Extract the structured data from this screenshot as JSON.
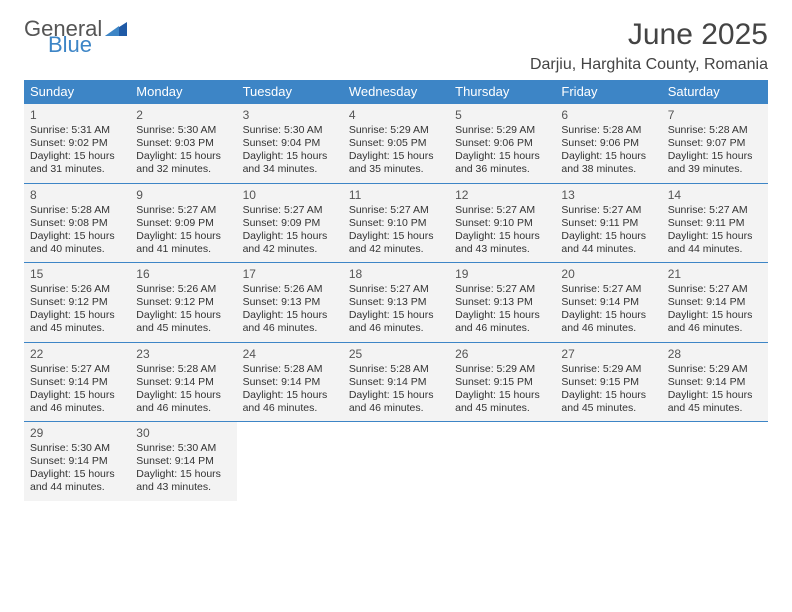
{
  "brand": {
    "general": "General",
    "blue": "Blue"
  },
  "title": "June 2025",
  "location": "Darjiu, Harghita County, Romania",
  "colors": {
    "header_bg": "#3d85c6",
    "header_text": "#ffffff",
    "cell_bg": "#f3f3f3",
    "page_bg": "#ffffff",
    "border": "#3d85c6",
    "logo_gray": "#555555",
    "logo_blue": "#3d85c6"
  },
  "typography": {
    "title_fontsize": 30,
    "location_fontsize": 16,
    "dayhead_fontsize": 13,
    "daynum_fontsize": 12,
    "body_fontsize": 10.5,
    "font_family": "Arial"
  },
  "day_headers": [
    "Sunday",
    "Monday",
    "Tuesday",
    "Wednesday",
    "Thursday",
    "Friday",
    "Saturday"
  ],
  "weeks": [
    [
      {
        "n": "1",
        "sr": "5:31 AM",
        "ss": "9:02 PM",
        "dl": "15 hours and 31 minutes."
      },
      {
        "n": "2",
        "sr": "5:30 AM",
        "ss": "9:03 PM",
        "dl": "15 hours and 32 minutes."
      },
      {
        "n": "3",
        "sr": "5:30 AM",
        "ss": "9:04 PM",
        "dl": "15 hours and 34 minutes."
      },
      {
        "n": "4",
        "sr": "5:29 AM",
        "ss": "9:05 PM",
        "dl": "15 hours and 35 minutes."
      },
      {
        "n": "5",
        "sr": "5:29 AM",
        "ss": "9:06 PM",
        "dl": "15 hours and 36 minutes."
      },
      {
        "n": "6",
        "sr": "5:28 AM",
        "ss": "9:06 PM",
        "dl": "15 hours and 38 minutes."
      },
      {
        "n": "7",
        "sr": "5:28 AM",
        "ss": "9:07 PM",
        "dl": "15 hours and 39 minutes."
      }
    ],
    [
      {
        "n": "8",
        "sr": "5:28 AM",
        "ss": "9:08 PM",
        "dl": "15 hours and 40 minutes."
      },
      {
        "n": "9",
        "sr": "5:27 AM",
        "ss": "9:09 PM",
        "dl": "15 hours and 41 minutes."
      },
      {
        "n": "10",
        "sr": "5:27 AM",
        "ss": "9:09 PM",
        "dl": "15 hours and 42 minutes."
      },
      {
        "n": "11",
        "sr": "5:27 AM",
        "ss": "9:10 PM",
        "dl": "15 hours and 42 minutes."
      },
      {
        "n": "12",
        "sr": "5:27 AM",
        "ss": "9:10 PM",
        "dl": "15 hours and 43 minutes."
      },
      {
        "n": "13",
        "sr": "5:27 AM",
        "ss": "9:11 PM",
        "dl": "15 hours and 44 minutes."
      },
      {
        "n": "14",
        "sr": "5:27 AM",
        "ss": "9:11 PM",
        "dl": "15 hours and 44 minutes."
      }
    ],
    [
      {
        "n": "15",
        "sr": "5:26 AM",
        "ss": "9:12 PM",
        "dl": "15 hours and 45 minutes."
      },
      {
        "n": "16",
        "sr": "5:26 AM",
        "ss": "9:12 PM",
        "dl": "15 hours and 45 minutes."
      },
      {
        "n": "17",
        "sr": "5:26 AM",
        "ss": "9:13 PM",
        "dl": "15 hours and 46 minutes."
      },
      {
        "n": "18",
        "sr": "5:27 AM",
        "ss": "9:13 PM",
        "dl": "15 hours and 46 minutes."
      },
      {
        "n": "19",
        "sr": "5:27 AM",
        "ss": "9:13 PM",
        "dl": "15 hours and 46 minutes."
      },
      {
        "n": "20",
        "sr": "5:27 AM",
        "ss": "9:14 PM",
        "dl": "15 hours and 46 minutes."
      },
      {
        "n": "21",
        "sr": "5:27 AM",
        "ss": "9:14 PM",
        "dl": "15 hours and 46 minutes."
      }
    ],
    [
      {
        "n": "22",
        "sr": "5:27 AM",
        "ss": "9:14 PM",
        "dl": "15 hours and 46 minutes."
      },
      {
        "n": "23",
        "sr": "5:28 AM",
        "ss": "9:14 PM",
        "dl": "15 hours and 46 minutes."
      },
      {
        "n": "24",
        "sr": "5:28 AM",
        "ss": "9:14 PM",
        "dl": "15 hours and 46 minutes."
      },
      {
        "n": "25",
        "sr": "5:28 AM",
        "ss": "9:14 PM",
        "dl": "15 hours and 46 minutes."
      },
      {
        "n": "26",
        "sr": "5:29 AM",
        "ss": "9:15 PM",
        "dl": "15 hours and 45 minutes."
      },
      {
        "n": "27",
        "sr": "5:29 AM",
        "ss": "9:15 PM",
        "dl": "15 hours and 45 minutes."
      },
      {
        "n": "28",
        "sr": "5:29 AM",
        "ss": "9:14 PM",
        "dl": "15 hours and 45 minutes."
      }
    ],
    [
      {
        "n": "29",
        "sr": "5:30 AM",
        "ss": "9:14 PM",
        "dl": "15 hours and 44 minutes."
      },
      {
        "n": "30",
        "sr": "5:30 AM",
        "ss": "9:14 PM",
        "dl": "15 hours and 43 minutes."
      },
      null,
      null,
      null,
      null,
      null
    ]
  ],
  "labels": {
    "sunrise": "Sunrise:",
    "sunset": "Sunset:",
    "daylight": "Daylight:"
  }
}
